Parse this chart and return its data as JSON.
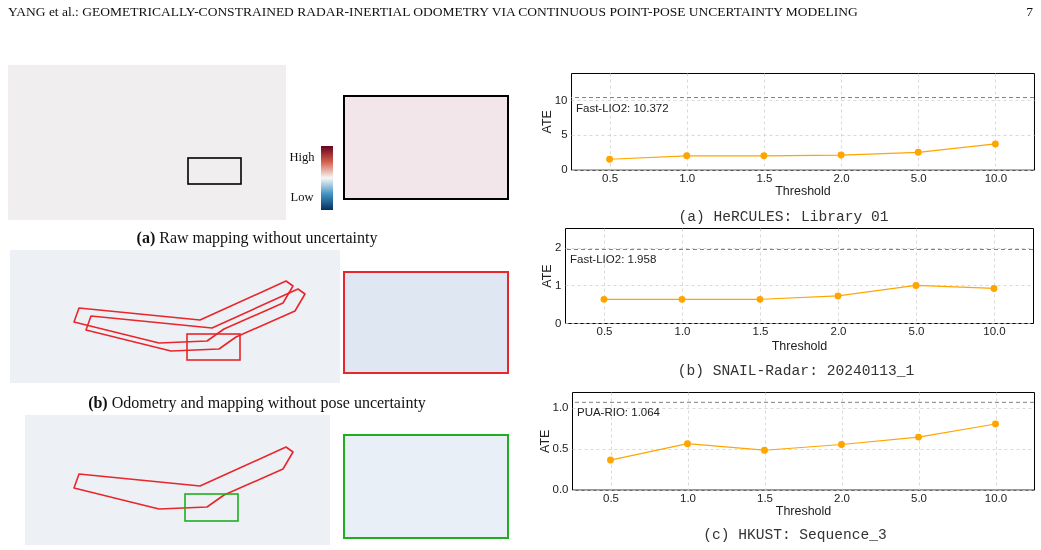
{
  "chart_data": [
    {
      "type": "other",
      "title": "YANG et al.: GEOMETRICALLY-CONSTRAINED RADAR-INERTIAL ODOMETRY VIA CONTINUOUS POINT-POSE UNCERTAINTY MODELING",
      "annotations": [
        "7",
        "High",
        "Low",
        "(a) Raw mapping without uncertainty",
        "(b) Odometry and mapping without pose uncertainty"
      ]
    },
    {
      "type": "line",
      "title": "(a) HeRCULES: Library 01",
      "xlabel": "Threshold",
      "ylabel": "ATE",
      "categories": [
        "0.5",
        "1.0",
        "1.5",
        "2.0",
        "5.0",
        "10.0"
      ],
      "values": [
        1.5,
        2.0,
        2.0,
        2.1,
        2.5,
        3.7
      ],
      "color": "#ffa500",
      "ylim": [
        0,
        13.9
      ],
      "yticks": [
        0,
        5,
        10
      ],
      "grid": true,
      "marker": "circle",
      "ref_lines": [
        {
          "axis": "y",
          "value": 10.372,
          "label": "Fast-LIO2: 10.372",
          "color": "#808080",
          "line_style": "dashed"
        }
      ]
    },
    {
      "type": "line",
      "title": "(b) SNAIL-Radar: 20240113_1",
      "xlabel": "Threshold",
      "ylabel": "ATE",
      "categories": [
        "0.5",
        "1.0",
        "1.5",
        "2.0",
        "5.0",
        "10.0"
      ],
      "values": [
        0.63,
        0.63,
        0.63,
        0.72,
        1.0,
        0.92
      ],
      "color": "#ffa500",
      "ylim": [
        0,
        2.53
      ],
      "yticks": [
        0,
        1,
        2
      ],
      "grid": true,
      "marker": "circle",
      "ref_lines": [
        {
          "axis": "y",
          "value": 1.958,
          "label": "Fast-LIO2: 1.958",
          "color": "#808080",
          "line_style": "dashed"
        }
      ]
    },
    {
      "type": "line",
      "title": "(c) HKUST: Sequence_3",
      "xlabel": "Threshold",
      "ylabel": "ATE",
      "categories": [
        "0.5",
        "1.0",
        "1.5",
        "2.0",
        "5.0",
        "10.0"
      ],
      "values": [
        0.36,
        0.56,
        0.48,
        0.55,
        0.64,
        0.8
      ],
      "color": "#ffa500",
      "ylim": [
        0,
        1.19
      ],
      "yticks": [
        {
          "value": 0,
          "label": "0.0"
        },
        0.5,
        {
          "value": 1,
          "label": "1.0"
        }
      ],
      "grid": true,
      "marker": "circle",
      "ref_lines": [
        {
          "axis": "y",
          "value": 1.064,
          "label": "PUA-RIO: 1.064",
          "color": "#808080",
          "line_style": "dashed"
        }
      ]
    }
  ]
}
